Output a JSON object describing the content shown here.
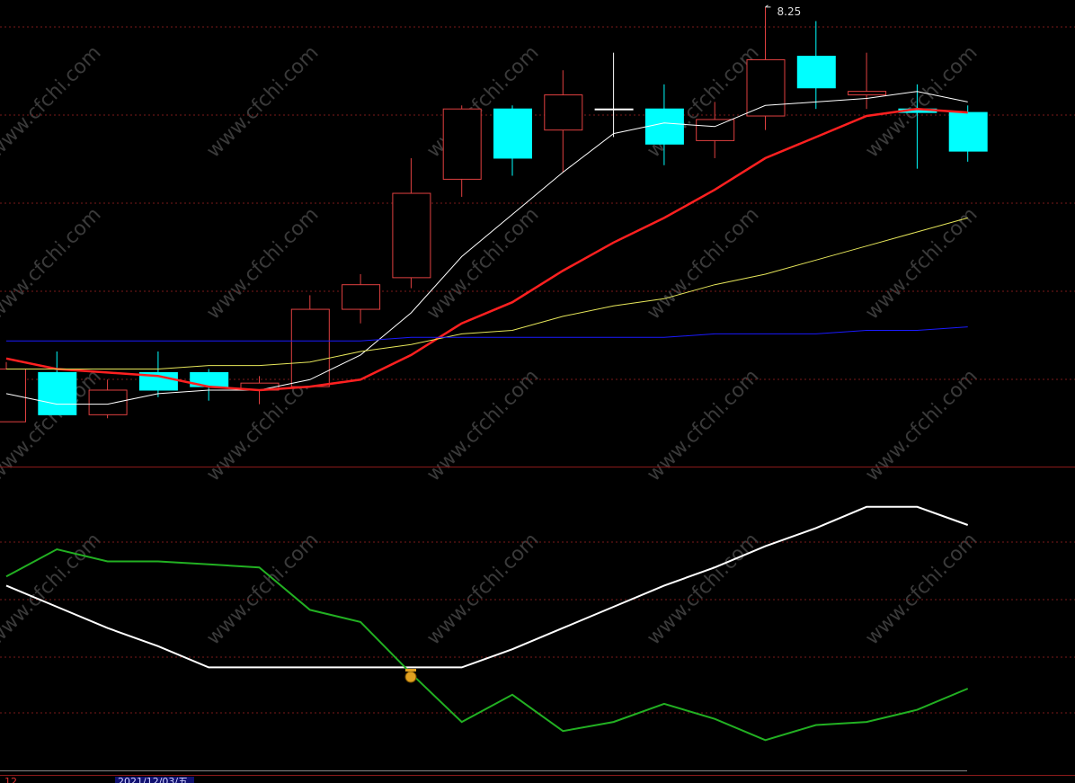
{
  "chart_data": [
    {
      "type": "candlestick",
      "up_color": "#e04040",
      "down_color": "#00ffff",
      "flat_color": "#ffffff",
      "open": [
        7.07,
        7.21,
        7.09,
        7.21,
        7.21,
        7.16,
        7.17,
        7.39,
        7.48,
        7.76,
        7.96,
        7.9,
        7.96,
        7.96,
        7.87,
        7.94,
        8.11,
        8.0,
        7.96,
        7.95
      ],
      "high": [
        7.24,
        7.27,
        7.19,
        7.27,
        7.22,
        7.2,
        7.43,
        7.49,
        7.82,
        7.97,
        7.97,
        8.07,
        8.12,
        8.03,
        7.98,
        8.25,
        8.21,
        8.12,
        8.03,
        7.97
      ],
      "low": [
        7.07,
        7.09,
        7.08,
        7.14,
        7.13,
        7.12,
        7.17,
        7.35,
        7.45,
        7.71,
        7.77,
        7.78,
        7.88,
        7.8,
        7.82,
        7.9,
        7.96,
        7.96,
        7.79,
        7.81
      ],
      "close": [
        7.22,
        7.09,
        7.16,
        7.16,
        7.17,
        7.18,
        7.39,
        7.46,
        7.72,
        7.96,
        7.82,
        8.0,
        7.96,
        7.86,
        7.93,
        8.1,
        8.02,
        8.01,
        7.95,
        7.84
      ],
      "series": [
        {
          "color": "#ffffff",
          "width": 1,
          "values": [
            7.15,
            7.12,
            7.12,
            7.15,
            7.16,
            7.16,
            7.19,
            7.26,
            7.38,
            7.54,
            7.66,
            7.78,
            7.89,
            7.92,
            7.91,
            7.97,
            7.98,
            7.99,
            8.01,
            7.98
          ]
        },
        {
          "color": "#ff2020",
          "width": 2.5,
          "values": [
            7.25,
            7.22,
            7.21,
            7.2,
            7.17,
            7.16,
            7.17,
            7.19,
            7.26,
            7.35,
            7.41,
            7.5,
            7.58,
            7.65,
            7.73,
            7.82,
            7.88,
            7.94,
            7.96,
            7.95
          ]
        },
        {
          "color": "#e6e65a",
          "width": 1,
          "values": [
            7.22,
            7.22,
            7.22,
            7.22,
            7.23,
            7.23,
            7.24,
            7.27,
            7.29,
            7.32,
            7.33,
            7.37,
            7.4,
            7.42,
            7.46,
            7.49,
            7.53,
            7.57,
            7.61,
            7.65
          ]
        },
        {
          "color": "#1a1aff",
          "width": 1,
          "values": [
            7.3,
            7.3,
            7.3,
            7.3,
            7.3,
            7.3,
            7.3,
            7.3,
            7.31,
            7.31,
            7.31,
            7.31,
            7.31,
            7.31,
            7.32,
            7.32,
            7.32,
            7.33,
            7.33,
            7.34
          ]
        }
      ],
      "ylim": [
        6.94,
        8.27
      ]
    },
    {
      "type": "line",
      "series": [
        {
          "color": "#ffffff",
          "width": 2,
          "values": [
            61,
            54,
            47,
            41,
            34,
            34,
            34,
            34,
            34,
            34,
            40,
            47,
            54,
            61,
            67,
            74,
            80,
            87,
            87,
            81
          ]
        },
        {
          "color": "#22b022",
          "width": 2,
          "values": [
            64,
            73,
            69,
            69,
            68,
            67,
            53,
            49,
            32,
            16,
            25,
            13,
            16,
            22,
            17,
            10,
            15,
            16,
            20,
            27
          ]
        }
      ],
      "ylim": [
        0,
        100
      ]
    }
  ],
  "watermark": "www.cfchi.com",
  "footer": {
    "left": "12",
    "date": "2021/12/03/五"
  }
}
